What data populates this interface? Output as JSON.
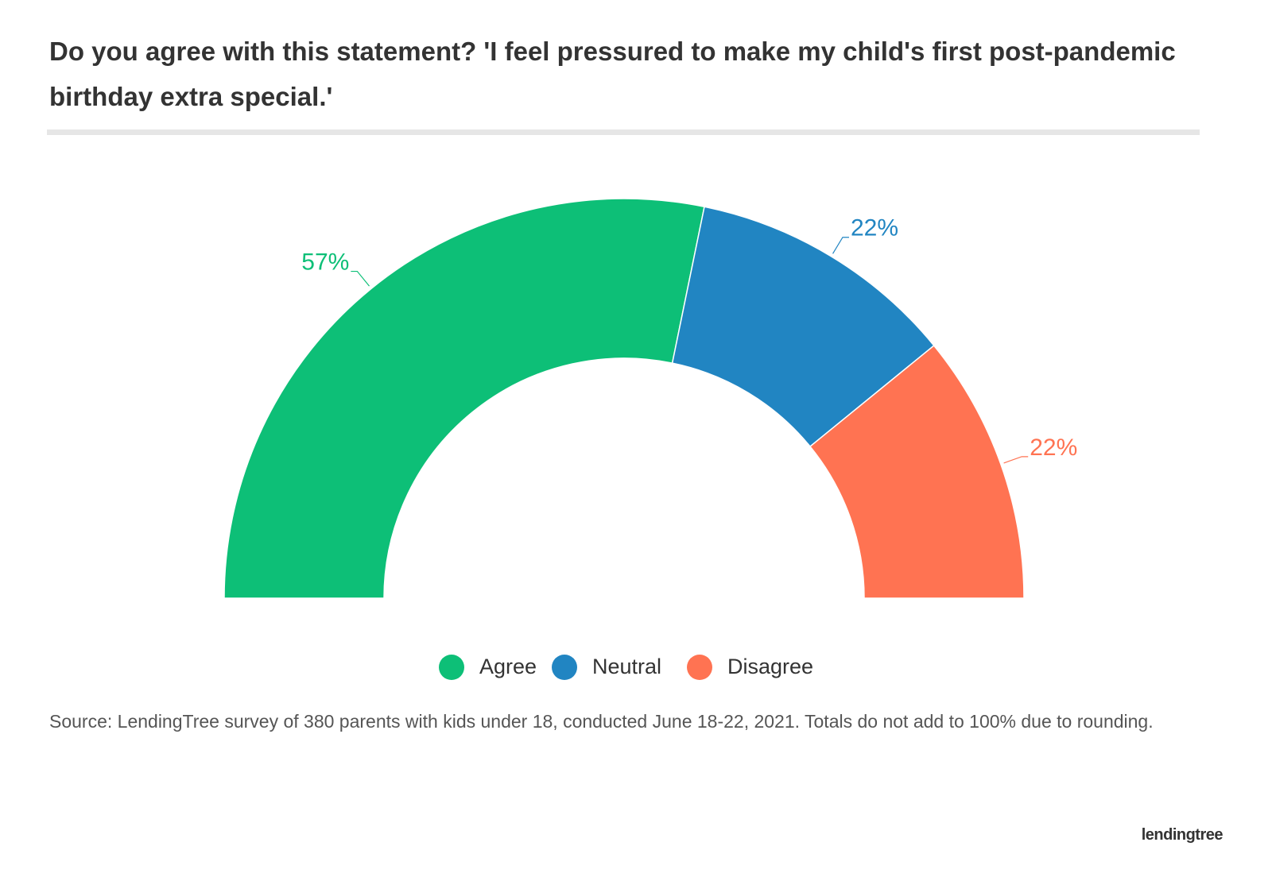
{
  "chart_data": {
    "type": "semi-donut",
    "title": "Do you agree with this statement? 'I feel pressured to make my child's first post-pandemic birthday extra special.'",
    "categories": [
      "Agree",
      "Neutral",
      "Disagree"
    ],
    "values": [
      57,
      22,
      22
    ],
    "value_labels": [
      "57%",
      "22%",
      "22%"
    ],
    "colors": [
      "#0dbf77",
      "#2185c2",
      "#ff7352"
    ],
    "source": "Source: LendingTree survey of 380 parents with kids under 18, conducted June 18-22, 2021. Totals do not add to 100% due to rounding.",
    "logo": "lendingtree"
  }
}
